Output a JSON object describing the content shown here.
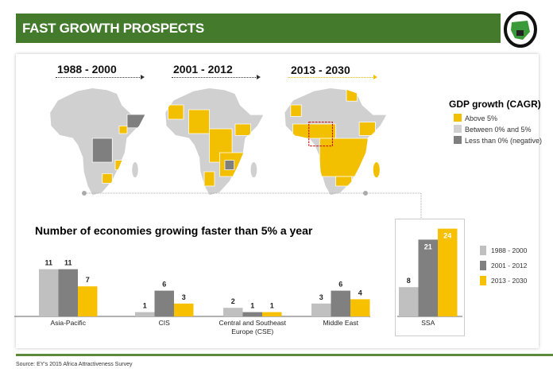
{
  "header": {
    "title": "FAST GROWTH PROSPECTS"
  },
  "periods": [
    "1988 - 2000",
    "2001 - 2012",
    "2013 - 2030"
  ],
  "map_legend": {
    "title": "GDP growth (CAGR)",
    "items": [
      {
        "label": "Above 5%",
        "color": "#f2c000"
      },
      {
        "label": "Between 0% and 5%",
        "color": "#d0d0d0"
      },
      {
        "label": "Less than 0% (negative)",
        "color": "#7f7f7f"
      }
    ]
  },
  "chart_data": {
    "type": "bar",
    "title": "Number of economies growing faster than 5% a year",
    "categories": [
      "Asia-Pacific",
      "CIS",
      "Central and Southeast Europe (CSE)",
      "Middle East",
      "SSA"
    ],
    "series": [
      {
        "name": "1988 - 2000",
        "color": "#c0c0c0",
        "values": [
          11,
          1,
          2,
          3,
          8
        ]
      },
      {
        "name": "2001 - 2012",
        "color": "#808080",
        "values": [
          11,
          6,
          1,
          6,
          21
        ]
      },
      {
        "name": "2013 - 2030",
        "color": "#f7c000",
        "values": [
          7,
          3,
          1,
          4,
          24
        ]
      }
    ],
    "highlighted_category": "SSA",
    "legend": "right"
  },
  "footer": {
    "source": "Source: EY's 2015 Africa Attractiveness Survey"
  }
}
